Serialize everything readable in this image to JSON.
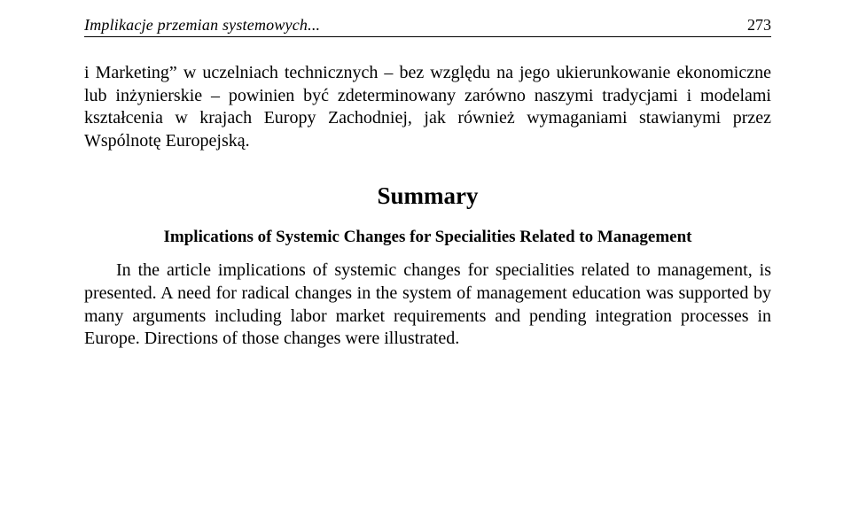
{
  "header": {
    "running_title": "Implikacje przemian systemowych...",
    "page_number": "273"
  },
  "body": {
    "paragraph1": "i Marketing” w uczelniach technicznych – bez względu na jego ukierunkowanie ekonomiczne lub inżynierskie – powinien być zdeterminowany zarówno naszymi tradycjami i modelami kształcenia w krajach Europy Zachodniej, jak również wymaganiami stawianymi przez Wspólnotę Europejską."
  },
  "summary": {
    "heading": "Summary",
    "subheading": "Implications of Systemic Changes for Specialities Related to Management",
    "paragraph": "In the article implications of systemic changes for specialities related to management, is presented. A need for radical changes in the system of management education was supported by many arguments including labor market requirements and pending integration processes in Europe. Directions of those changes were illustrated."
  }
}
